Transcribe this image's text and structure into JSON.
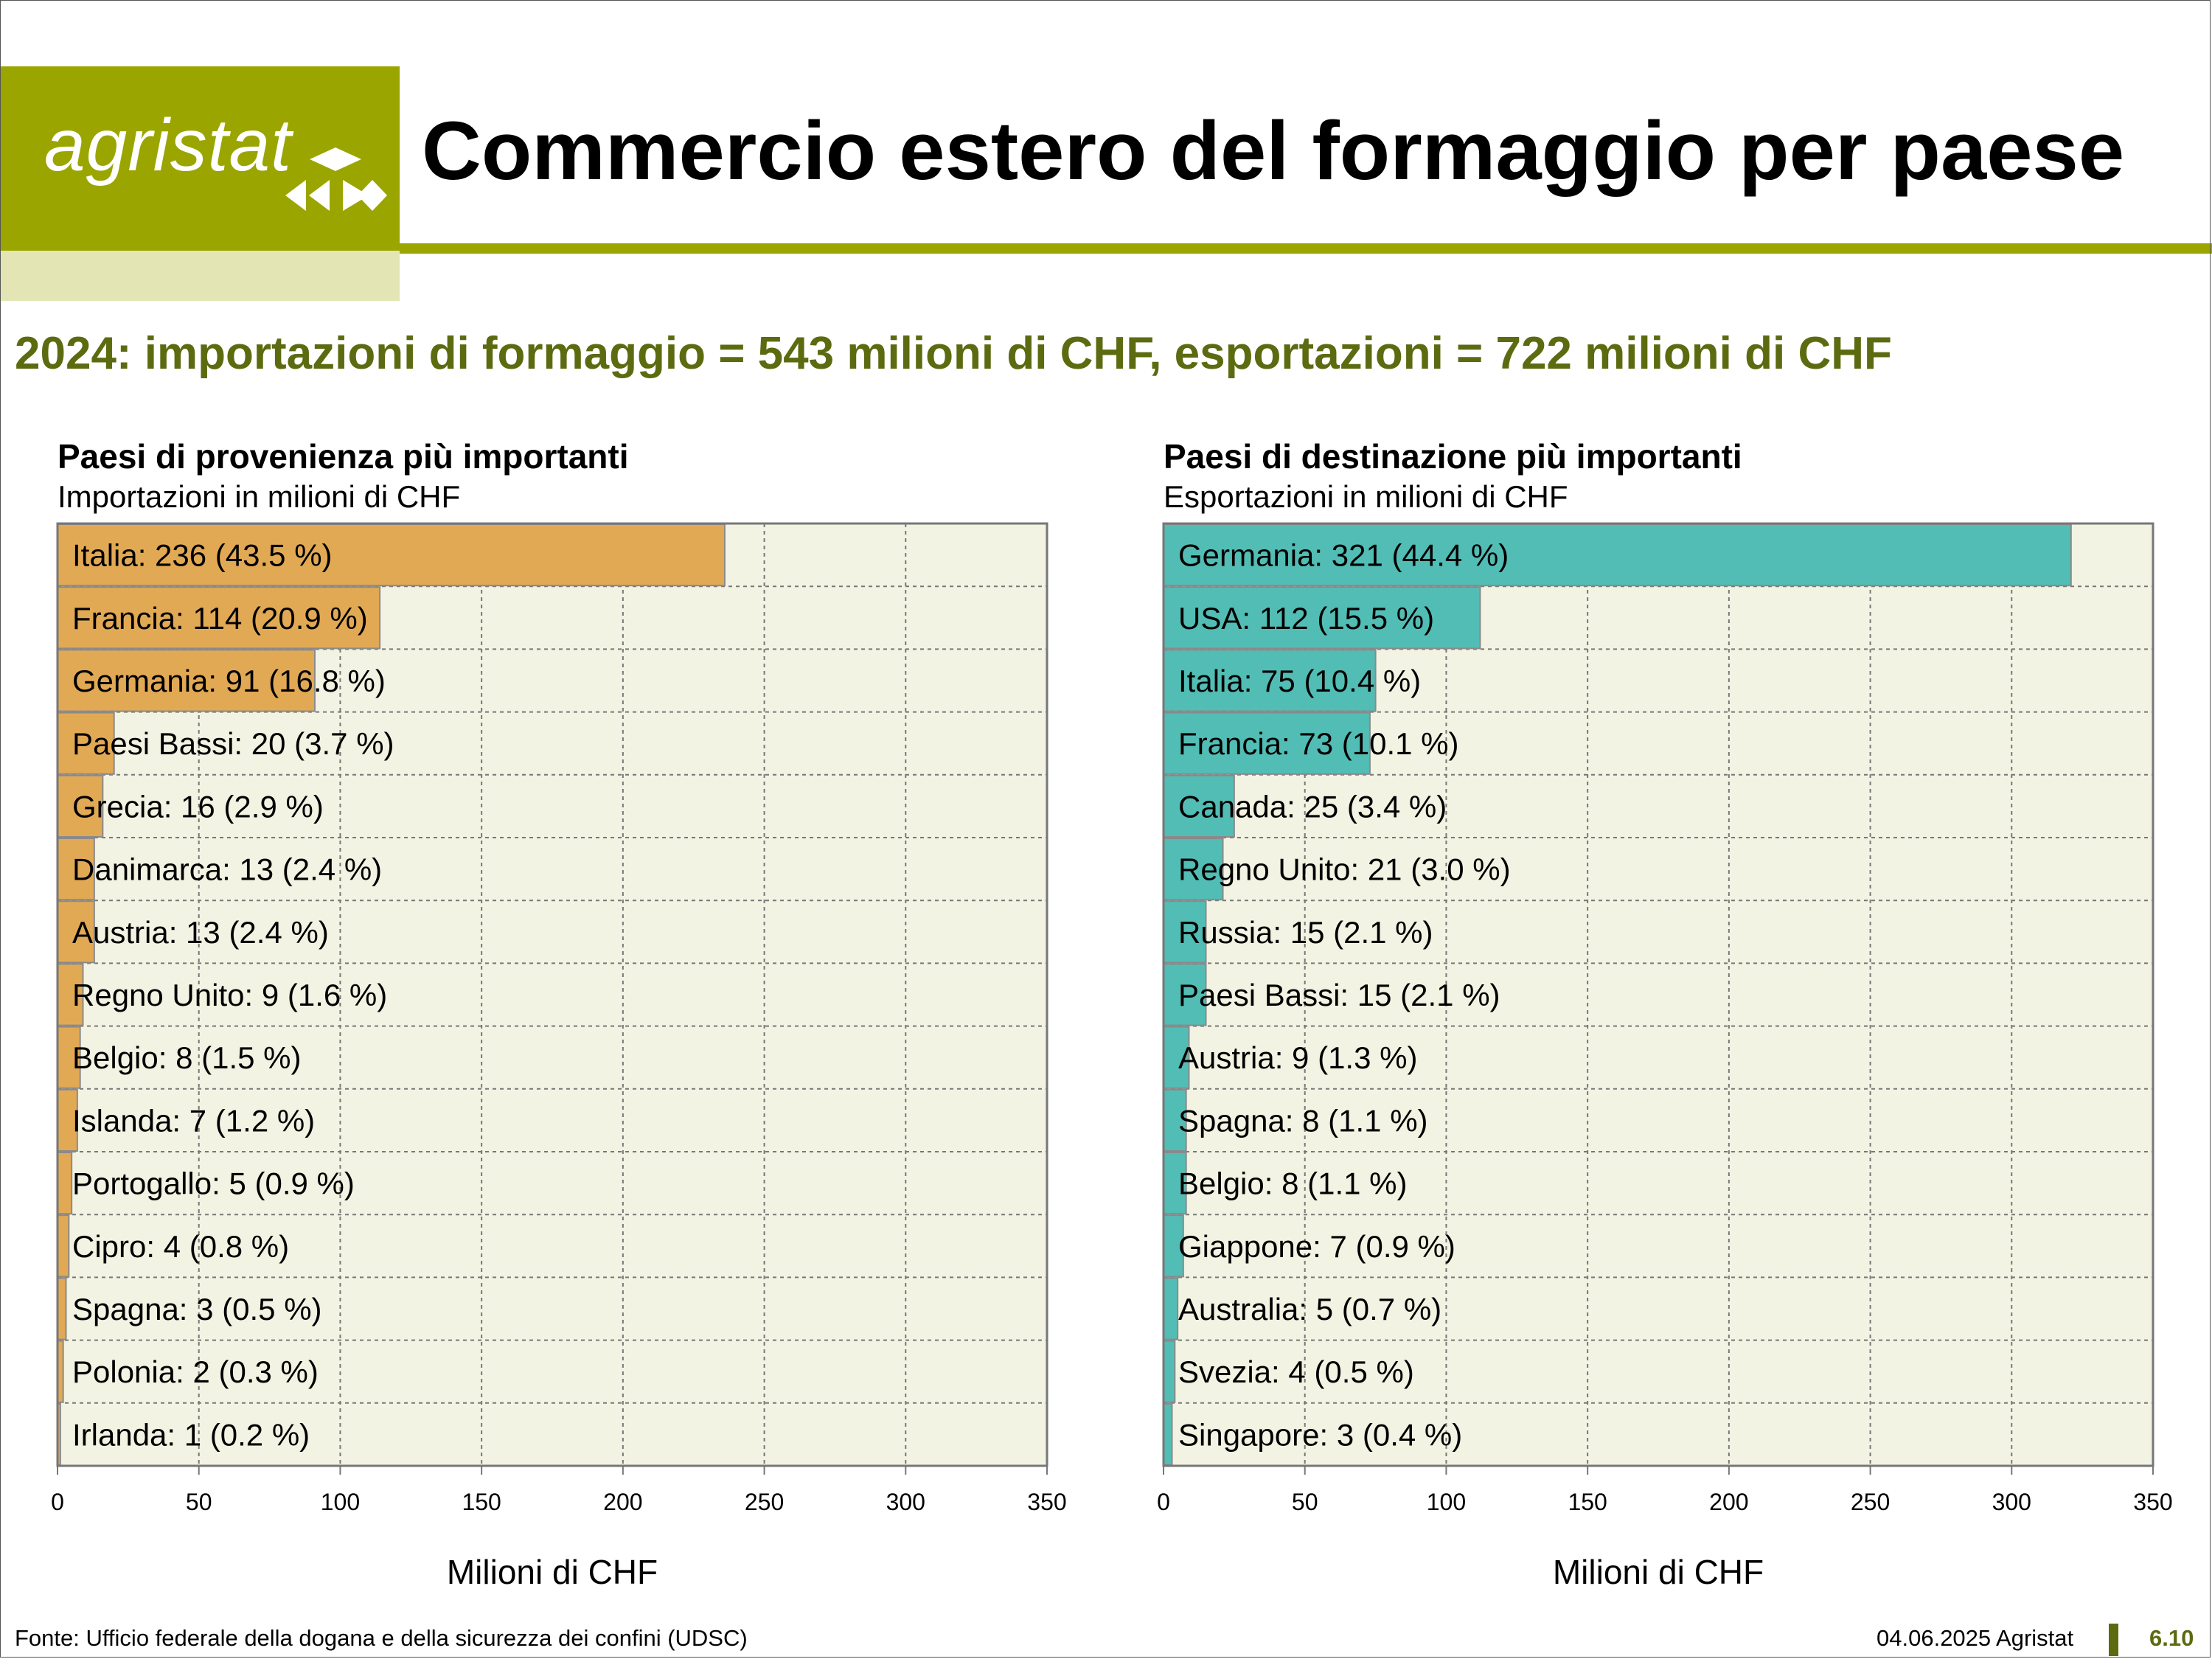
{
  "header": {
    "logo_text": "agristat",
    "title": "Commercio estero del formaggio per paese"
  },
  "subtitle": "2024: importazioni di formaggio = 543 milioni di CHF, esportazioni = 722 milioni di CHF",
  "colors": {
    "brand": "#9ba500",
    "brand_light": "#e3e6b4",
    "subtitle": "#5c6b10",
    "plot_background": "#f3f3e3",
    "imports_bar": "#e2a955",
    "exports_bar": "#52bdb5"
  },
  "chart_data": [
    {
      "type": "bar",
      "orientation": "horizontal",
      "title": "Paesi di provenienza più importanti",
      "subtitle": "Importazioni in milioni di CHF",
      "xlabel": "Milioni di CHF",
      "xlim": [
        0,
        350
      ],
      "xticks": [
        0,
        50,
        100,
        150,
        200,
        250,
        300,
        350
      ],
      "grid": true,
      "categories": [
        "Italia",
        "Francia",
        "Germania",
        "Paesi Bassi",
        "Grecia",
        "Danimarca",
        "Austria",
        "Regno Unito",
        "Belgio",
        "Islanda",
        "Portogallo",
        "Cipro",
        "Spagna",
        "Polonia",
        "Irlanda"
      ],
      "values": [
        236,
        114,
        91,
        20,
        16,
        13,
        13,
        9,
        8,
        7,
        5,
        4,
        3,
        2,
        1
      ],
      "labels": [
        "Italia: 236 (43.5 %)",
        "Francia: 114 (20.9 %)",
        "Germania: 91 (16.8 %)",
        "Paesi Bassi: 20 (3.7 %)",
        "Grecia: 16 (2.9 %)",
        "Danimarca: 13 (2.4 %)",
        "Austria: 13 (2.4 %)",
        "Regno Unito: 9 (1.6 %)",
        "Belgio: 8 (1.5 %)",
        "Islanda: 7 (1.2 %)",
        "Portogallo: 5 (0.9 %)",
        "Cipro: 4 (0.8 %)",
        "Spagna: 3 (0.5 %)",
        "Polonia: 2 (0.3 %)",
        "Irlanda: 1 (0.2 %)"
      ],
      "color": "#e2a955"
    },
    {
      "type": "bar",
      "orientation": "horizontal",
      "title": "Paesi di destinazione più importanti",
      "subtitle": "Esportazioni in milioni di CHF",
      "xlabel": "Milioni di CHF",
      "xlim": [
        0,
        350
      ],
      "xticks": [
        0,
        50,
        100,
        150,
        200,
        250,
        300,
        350
      ],
      "grid": true,
      "categories": [
        "Germania",
        "USA",
        "Italia",
        "Francia",
        "Canada",
        "Regno Unito",
        "Russia",
        "Paesi Bassi",
        "Austria",
        "Spagna",
        "Belgio",
        "Giappone",
        "Australia",
        "Svezia",
        "Singapore"
      ],
      "values": [
        321,
        112,
        75,
        73,
        25,
        21,
        15,
        15,
        9,
        8,
        8,
        7,
        5,
        4,
        3
      ],
      "labels": [
        "Germania: 321 (44.4 %)",
        "USA: 112 (15.5 %)",
        "Italia: 75 (10.4 %)",
        "Francia: 73 (10.1 %)",
        "Canada: 25 (3.4 %)",
        "Regno Unito: 21 (3.0 %)",
        "Russia: 15 (2.1 %)",
        "Paesi Bassi: 15 (2.1 %)",
        "Austria: 9 (1.3 %)",
        "Spagna: 8 (1.1 %)",
        "Belgio: 8 (1.1 %)",
        "Giappone: 7 (0.9 %)",
        "Australia: 5 (0.7 %)",
        "Svezia: 4 (0.5 %)",
        "Singapore: 3 (0.4 %)"
      ],
      "color": "#52bdb5"
    }
  ],
  "footer": {
    "source": "Fonte: Ufficio federale della dogana e della sicurezza dei confini (UDSC)",
    "date": "04.06.2025 Agristat",
    "page": "6.10"
  }
}
